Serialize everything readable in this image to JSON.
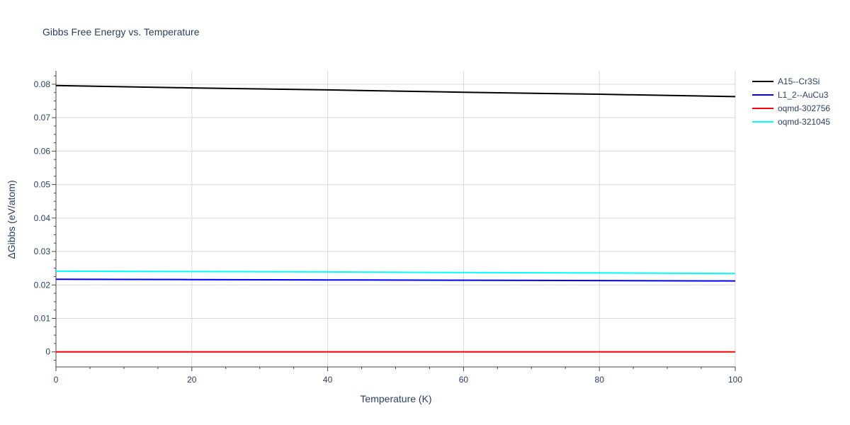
{
  "chart_data": {
    "type": "line",
    "title": "Gibbs Free Energy vs. Temperature",
    "xlabel": "Temperature (K)",
    "ylabel": "ΔGibbs (eV/atom)",
    "xlim": [
      0,
      100
    ],
    "ylim": [
      -0.0045,
      0.084
    ],
    "x_ticks": [
      0,
      20,
      40,
      60,
      80,
      100
    ],
    "x_tick_labels": [
      "0",
      "20",
      "40",
      "60",
      "80",
      "100"
    ],
    "y_ticks": [
      0,
      0.01,
      0.02,
      0.03,
      0.04,
      0.05,
      0.06,
      0.07,
      0.08
    ],
    "y_tick_labels": [
      "0",
      "0.01",
      "0.02",
      "0.03",
      "0.04",
      "0.05",
      "0.06",
      "0.07",
      "0.08"
    ],
    "grid": true,
    "legend_position": "right",
    "series": [
      {
        "name": "A15--Cr3Si",
        "color": "#000000",
        "x": [
          0,
          20,
          40,
          60,
          80,
          100
        ],
        "y": [
          0.0796,
          0.0789,
          0.0783,
          0.0776,
          0.077,
          0.0763
        ]
      },
      {
        "name": "L1_2--AuCu3",
        "color": "#0000ff",
        "x": [
          0,
          20,
          40,
          60,
          80,
          100
        ],
        "y": [
          0.0217,
          0.0216,
          0.0215,
          0.0214,
          0.0213,
          0.0212
        ]
      },
      {
        "name": "oqmd-302756",
        "color": "#ff0000",
        "x": [
          0,
          20,
          40,
          60,
          80,
          100
        ],
        "y": [
          0.0,
          0.0,
          0.0,
          0.0,
          0.0,
          0.0
        ]
      },
      {
        "name": "oqmd-321045",
        "color": "#00ffff",
        "x": [
          0,
          20,
          40,
          60,
          80,
          100
        ],
        "y": [
          0.0241,
          0.024,
          0.0239,
          0.0237,
          0.0236,
          0.0234
        ]
      }
    ]
  }
}
